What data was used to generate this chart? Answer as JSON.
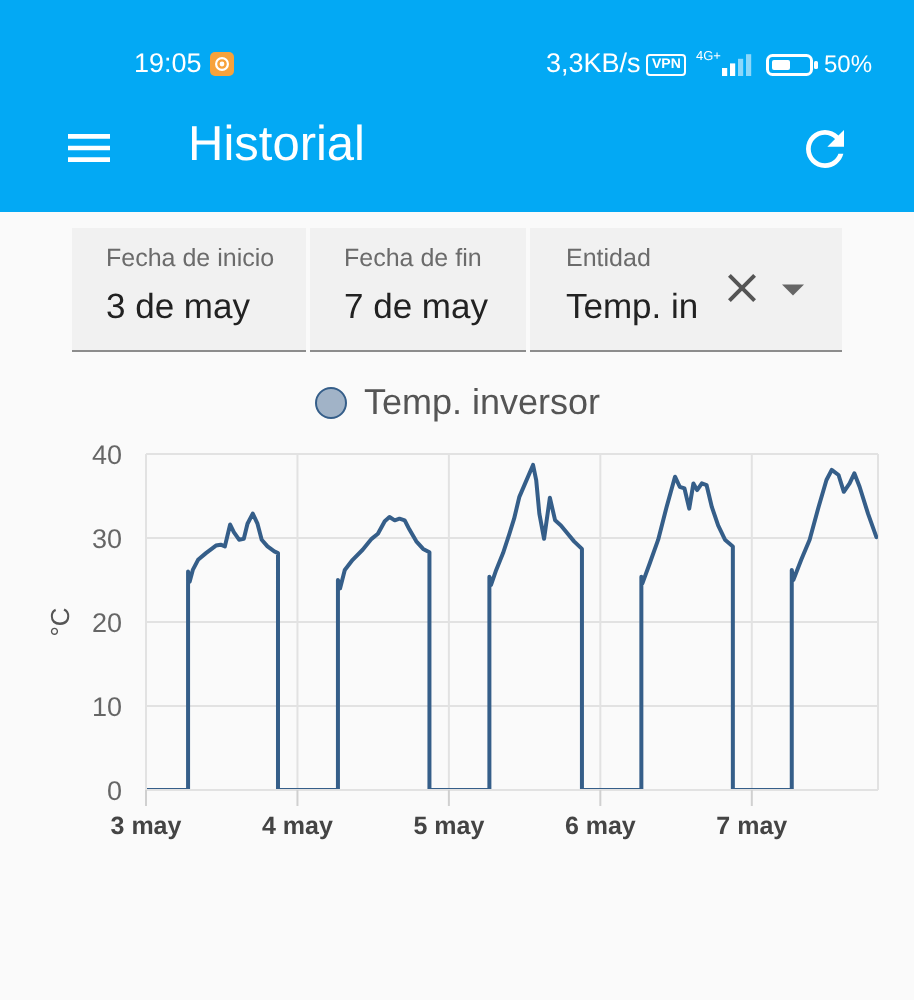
{
  "chart_data": {
    "type": "line",
    "title": "Historial",
    "ylabel": "°C",
    "legend": "top",
    "grid": true,
    "annotations": [
      "19:05",
      "3,3KB/s",
      "VPN",
      "4G+",
      "50%",
      "Fecha de inicio",
      "3 de may",
      "Fecha de fin",
      "7 de may",
      "Entidad",
      "Temp. in"
    ],
    "xlim": [
      "--05-03",
      "--05-07T20:00"
    ],
    "xticks": [
      {
        "value": "--05-03",
        "label": "3 may"
      },
      {
        "value": "--05-04",
        "label": "4 may"
      },
      {
        "value": "--05-05",
        "label": "5 may"
      },
      {
        "value": "--05-06",
        "label": "6 may"
      },
      {
        "value": "--05-07",
        "label": "7 may"
      }
    ],
    "ylim": [
      0,
      40
    ],
    "yticks": [
      0,
      10,
      20,
      30,
      40
    ],
    "x": [
      "--05-03T00:00",
      "--05-03T06:40",
      "--05-03T06:40",
      "--05-03T06:55",
      "--05-03T07:25",
      "--05-03T08:15",
      "--05-03T09:30",
      "--05-03T11:05",
      "--05-03T11:50",
      "--05-03T12:30",
      "--05-03T13:20",
      "--05-03T13:55",
      "--05-03T14:45",
      "--05-03T15:30",
      "--05-03T16:05",
      "--05-03T16:55",
      "--05-03T17:40",
      "--05-03T18:20",
      "--05-03T19:15",
      "--05-03T20:20",
      "--05-03T20:55",
      "--05-03T20:55",
      "--05-04T06:25",
      "--05-04T06:25",
      "--05-04T06:45",
      "--05-04T07:30",
      "--05-04T08:45",
      "--05-04T10:20",
      "--05-04T11:45",
      "--05-04T12:45",
      "--05-04T13:50",
      "--05-04T14:35",
      "--05-04T15:25",
      "--05-04T16:10",
      "--05-04T17:00",
      "--05-04T17:45",
      "--05-04T18:50",
      "--05-04T19:55",
      "--05-04T20:55",
      "--05-04T20:55",
      "--05-05T06:25",
      "--05-05T06:25",
      "--05-05T06:40",
      "--05-05T07:30",
      "--05-05T08:35",
      "--05-05T09:35",
      "--05-05T10:20",
      "--05-05T11:10",
      "--05-05T12:05",
      "--05-05T13:20",
      "--05-05T13:50",
      "--05-05T14:20",
      "--05-05T15:05",
      "--05-05T16:00",
      "--05-05T16:50",
      "--05-05T17:45",
      "--05-05T18:50",
      "--05-05T19:50",
      "--05-05T21:05",
      "--05-05T21:05",
      "--05-06T06:30",
      "--05-06T06:30",
      "--05-06T06:40",
      "--05-06T07:50",
      "--05-06T09:10",
      "--05-06T10:30",
      "--05-06T11:50",
      "--05-06T12:35",
      "--05-06T13:20",
      "--05-06T14:05",
      "--05-06T14:45",
      "--05-06T15:20",
      "--05-06T16:05",
      "--05-06T16:50",
      "--05-06T17:40",
      "--05-06T18:40",
      "--05-06T19:45",
      "--05-06T21:00",
      "--05-06T21:00",
      "--05-07T06:20",
      "--05-07T06:20",
      "--05-07T06:35",
      "--05-07T07:50",
      "--05-07T09:10",
      "--05-07T10:35",
      "--05-07T11:50",
      "--05-07T12:40",
      "--05-07T13:45",
      "--05-07T14:35",
      "--05-07T15:30",
      "--05-07T16:15",
      "--05-07T17:05",
      "--05-07T18:25",
      "--05-07T19:45"
    ],
    "series": [
      {
        "name": "Temp. inversor",
        "color": "#355e89",
        "values": [
          0,
          0,
          26.0,
          24.8,
          26.2,
          27.4,
          28.2,
          29.1,
          29.2,
          29.0,
          31.6,
          30.7,
          29.8,
          29.9,
          31.7,
          32.9,
          31.7,
          29.8,
          29.0,
          28.4,
          28.2,
          0,
          0,
          25.0,
          24.0,
          26.2,
          27.4,
          28.6,
          29.9,
          30.5,
          32.0,
          32.5,
          32.1,
          32.3,
          32.1,
          31.0,
          29.6,
          28.7,
          28.3,
          0,
          0,
          25.4,
          24.4,
          26.2,
          28.2,
          30.5,
          32.3,
          34.9,
          36.5,
          38.7,
          36.9,
          32.9,
          29.9,
          34.8,
          32.1,
          31.5,
          30.5,
          29.6,
          28.7,
          0,
          0,
          25.4,
          24.6,
          27.0,
          29.8,
          33.7,
          37.3,
          36.1,
          35.9,
          33.5,
          36.5,
          35.7,
          36.5,
          36.3,
          33.7,
          31.5,
          29.8,
          29.0,
          0,
          0,
          26.2,
          25.0,
          27.4,
          29.8,
          33.7,
          36.9,
          38.1,
          37.5,
          35.5,
          36.5,
          37.7,
          36.1,
          32.9,
          30.1
        ]
      }
    ]
  }
}
